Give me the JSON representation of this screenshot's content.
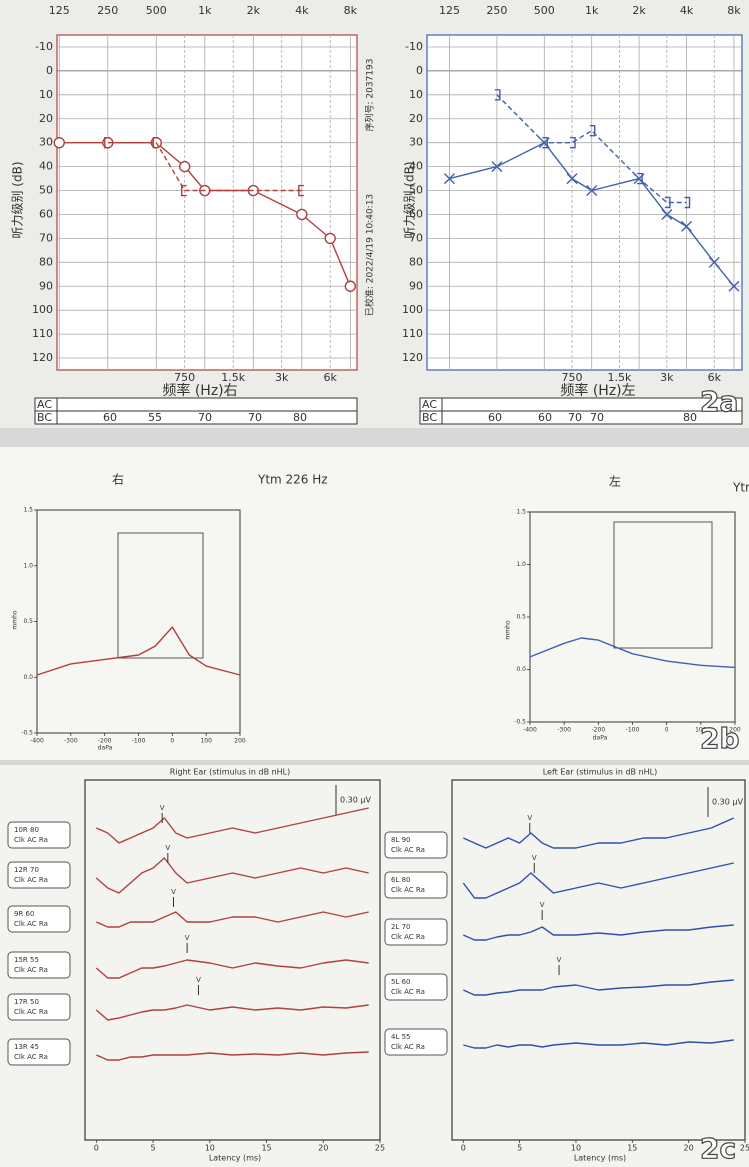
{
  "panel_labels": [
    "2a",
    "2b",
    "2c"
  ],
  "chart_data": [
    {
      "type": "line",
      "xscale": "log",
      "invert_y": true,
      "grid": true,
      "xticks_top": true,
      "frame_color": "#b04040",
      "xlabel": "频率 (Hz)右",
      "ylabel": "听力级别 (dB)",
      "serial": "序列号: 2037193",
      "calibrated": "已校准: 2022/4/19 10:40:13",
      "xlim": [
        121,
        8800
      ],
      "ylim": [
        -15,
        125
      ],
      "xticks": [
        125,
        250,
        500,
        {
          "value": 1000,
          "label": "1k"
        },
        {
          "value": 2000,
          "label": "2k"
        },
        {
          "value": 4000,
          "label": "4k"
        },
        {
          "value": 8000,
          "label": "8k"
        }
      ],
      "xticks_bottom": [
        750,
        {
          "value": 1500,
          "label": "1.5k"
        },
        {
          "value": 3000,
          "label": "3k"
        },
        {
          "value": 6000,
          "label": "6k"
        }
      ],
      "yticks": [
        -10,
        0,
        10,
        20,
        30,
        40,
        50,
        60,
        70,
        80,
        90,
        100,
        110,
        120
      ],
      "series": [
        {
          "color": "#b04040",
          "marker": "o",
          "x": [
            125,
            250,
            500,
            750,
            1000,
            2000,
            4000,
            6000,
            8000
          ],
          "values": [
            30,
            30,
            30,
            40,
            50,
            50,
            60,
            70,
            90
          ]
        },
        {
          "color": "#b04040",
          "marker": "[",
          "dash": true,
          "x": [
            250,
            500,
            750,
            4000
          ],
          "values": [
            30,
            30,
            50,
            50
          ]
        }
      ],
      "table": {
        "row_labels": [
          "AC",
          "BC"
        ],
        "BC": [
          60,
          55,
          70,
          70,
          80
        ]
      }
    },
    {
      "type": "line",
      "xscale": "log",
      "invert_y": true,
      "grid": true,
      "xticks_top": true,
      "frame_color": "#4060b0",
      "xlabel": "频率 (Hz)左",
      "ylabel": "听力级别 (dB)",
      "xlim": [
        90,
        9000
      ],
      "ylim": [
        -15,
        125
      ],
      "xticks": [
        125,
        250,
        500,
        {
          "value": 1000,
          "label": "1k"
        },
        {
          "value": 2000,
          "label": "2k"
        },
        {
          "value": 4000,
          "label": "4k"
        },
        {
          "value": 8000,
          "label": "8k"
        }
      ],
      "xticks_bottom": [
        750,
        {
          "value": 1500,
          "label": "1.5k"
        },
        {
          "value": 3000,
          "label": "3k"
        },
        {
          "value": 6000,
          "label": "6k"
        }
      ],
      "yticks": [
        -10,
        0,
        10,
        20,
        30,
        40,
        50,
        60,
        70,
        80,
        90,
        100,
        110,
        120
      ],
      "series": [
        {
          "color": "#4060b0",
          "marker": "x",
          "x": [
            125,
            250,
            500,
            750,
            1000,
            2000,
            3000,
            4000,
            6000,
            8000
          ],
          "values": [
            45,
            40,
            30,
            45,
            50,
            45,
            60,
            65,
            80,
            90
          ]
        },
        {
          "color": "#4060b0",
          "marker": "]",
          "dash": true,
          "x": [
            250,
            500,
            750,
            1000,
            2000,
            3000,
            4000
          ],
          "values": [
            10,
            30,
            30,
            25,
            45,
            55,
            55
          ]
        }
      ],
      "table": {
        "row_labels": [
          "AC",
          "BC"
        ],
        "BC": [
          60,
          60,
          70,
          70,
          80
        ]
      }
    },
    {
      "type": "line",
      "title": "右",
      "subtitle": "Ytm 226 Hz",
      "xlabel": "daPa",
      "ylabel": "mmho",
      "frame_color": "#555",
      "xlim": [
        -400,
        200
      ],
      "ylim": [
        -0.5,
        1.5
      ],
      "xticks": [
        -400,
        -300,
        -200,
        -100,
        0,
        100,
        200
      ],
      "yticks": [
        -0.5,
        {
          "value": 0,
          "label": "0.0"
        },
        0.5,
        {
          "value": 1,
          "label": "1.0"
        },
        1.5
      ],
      "series": [
        {
          "color": "#b04040",
          "x": [
            -400,
            -300,
            -200,
            -100,
            -50,
            0,
            50,
            100,
            200
          ],
          "values": [
            0.02,
            0.12,
            0.16,
            0.2,
            0.28,
            0.45,
            0.2,
            0.1,
            0.02
          ]
        }
      ]
    },
    {
      "type": "line",
      "title": "左",
      "subtitle": "Ytm",
      "xlabel": "daPa",
      "ylabel": "mmho",
      "frame_color": "#555",
      "xlim": [
        -400,
        200
      ],
      "ylim": [
        -0.5,
        1.5
      ],
      "xticks": [
        -400,
        -300,
        -200,
        -100,
        0,
        100,
        200
      ],
      "yticks": [
        -0.5,
        {
          "value": 0,
          "label": "0.0"
        },
        0.5,
        {
          "value": 1,
          "label": "1.0"
        },
        1.5
      ],
      "series": [
        {
          "color": "#4060b0",
          "x": [
            -400,
            -300,
            -250,
            -200,
            -100,
            0,
            100,
            200
          ],
          "values": [
            0.12,
            0.25,
            0.3,
            0.28,
            0.15,
            0.08,
            0.04,
            0.02
          ]
        }
      ]
    },
    {
      "type": "line",
      "title": "Right Ear (stimulus in dB nHL)",
      "xlabel": "Latency (ms)",
      "scale_label": "0.30 µV",
      "trace_sublabel": "Clk AC Ra",
      "peak_label": "V",
      "frame_color": "#333",
      "xlim": [
        -1,
        25
      ],
      "xticks": [
        0,
        5,
        10,
        15,
        20,
        25
      ],
      "x": [
        0,
        1,
        2,
        3,
        4,
        5,
        6,
        7,
        8,
        10,
        12,
        14,
        16,
        18,
        20,
        22,
        24
      ],
      "series": [
        {
          "name": "10R 80",
          "color": "#b04040",
          "peak": 5.8,
          "values": [
            0.1,
            0.05,
            -0.05,
            0,
            0.05,
            0.1,
            0.2,
            0.05,
            0,
            0.05,
            0.1,
            0.05,
            0.1,
            0.15,
            0.2,
            0.25,
            0.3
          ]
        },
        {
          "name": "12R 70",
          "color": "#b04040",
          "peak": 6.3,
          "values": [
            0,
            -0.1,
            -0.15,
            -0.05,
            0.05,
            0.1,
            0.2,
            0.05,
            -0.05,
            0,
            0.05,
            0,
            0.05,
            0.1,
            0.05,
            0.1,
            0.05
          ]
        },
        {
          "name": "9R 60",
          "color": "#b04040",
          "peak": 6.8,
          "values": [
            0,
            -0.05,
            -0.05,
            0,
            0,
            0,
            0.05,
            0.1,
            0,
            0,
            0.05,
            0.05,
            0,
            0.05,
            0.1,
            0.05,
            0.1
          ]
        },
        {
          "name": "15R 55",
          "color": "#b04040",
          "peak": 8,
          "values": [
            0,
            -0.1,
            -0.1,
            -0.05,
            0,
            0,
            0.02,
            0.05,
            0.08,
            0.05,
            0,
            0.05,
            0.02,
            0,
            0.05,
            0.08,
            0.05
          ]
        },
        {
          "name": "17R 50",
          "color": "#b04040",
          "peak": 9,
          "values": [
            0,
            -0.1,
            -0.08,
            -0.05,
            -0.02,
            0,
            0,
            0.02,
            0.05,
            0,
            0.03,
            0,
            0.02,
            0,
            0.03,
            0.02,
            0.05
          ]
        },
        {
          "name": "13R 45",
          "color": "#b04040",
          "values": [
            0,
            -0.05,
            -0.05,
            -0.02,
            -0.02,
            0,
            0,
            0,
            0,
            0.02,
            0,
            0.01,
            0,
            0.02,
            0,
            0.02,
            0.03
          ]
        }
      ]
    },
    {
      "type": "line",
      "title": "Left Ear (stimulus in dB nHL)",
      "xlabel": "Latency (ms)",
      "scale_label": "0.30 µV",
      "trace_sublabel": "Clk AC Ra",
      "peak_label": "V",
      "frame_color": "#333",
      "xlim": [
        -1,
        25
      ],
      "xticks": [
        0,
        5,
        10,
        15,
        20,
        25
      ],
      "x": [
        0,
        1,
        2,
        3,
        4,
        5,
        6,
        7,
        8,
        10,
        12,
        14,
        16,
        18,
        20,
        22,
        24
      ],
      "series": [
        {
          "name": "8L 90",
          "color": "#3050a8",
          "peak": 5.9,
          "values": [
            0.1,
            0.05,
            0,
            0.05,
            0.1,
            0.05,
            0.15,
            0.05,
            0,
            0,
            0.05,
            0.05,
            0.1,
            0.1,
            0.15,
            0.2,
            0.3
          ]
        },
        {
          "name": "6L 80",
          "color": "#3050a8",
          "peak": 6.3,
          "values": [
            0.05,
            -0.1,
            -0.1,
            -0.05,
            0,
            0.05,
            0.15,
            0.05,
            -0.05,
            0,
            0.05,
            0,
            0.05,
            0.1,
            0.15,
            0.2,
            0.25
          ]
        },
        {
          "name": "2L 70",
          "color": "#3050a8",
          "peak": 7,
          "values": [
            0,
            -0.05,
            -0.05,
            -0.02,
            0,
            0,
            0.03,
            0.08,
            0,
            0,
            0.02,
            0,
            0.03,
            0.05,
            0.05,
            0.08,
            0.1
          ]
        },
        {
          "name": "5L 60",
          "color": "#3050a8",
          "peak": 8.5,
          "values": [
            0,
            -0.05,
            -0.05,
            -0.03,
            -0.02,
            0,
            0,
            0,
            0.03,
            0.05,
            0,
            0.02,
            0.03,
            0.05,
            0.05,
            0.08,
            0.1
          ]
        },
        {
          "name": "4L 55",
          "color": "#3050a8",
          "values": [
            0,
            -0.03,
            -0.03,
            0,
            -0.02,
            0,
            0,
            -0.02,
            0,
            0.02,
            0,
            0,
            0.02,
            0,
            0.03,
            0.02,
            0.05
          ]
        }
      ]
    }
  ]
}
